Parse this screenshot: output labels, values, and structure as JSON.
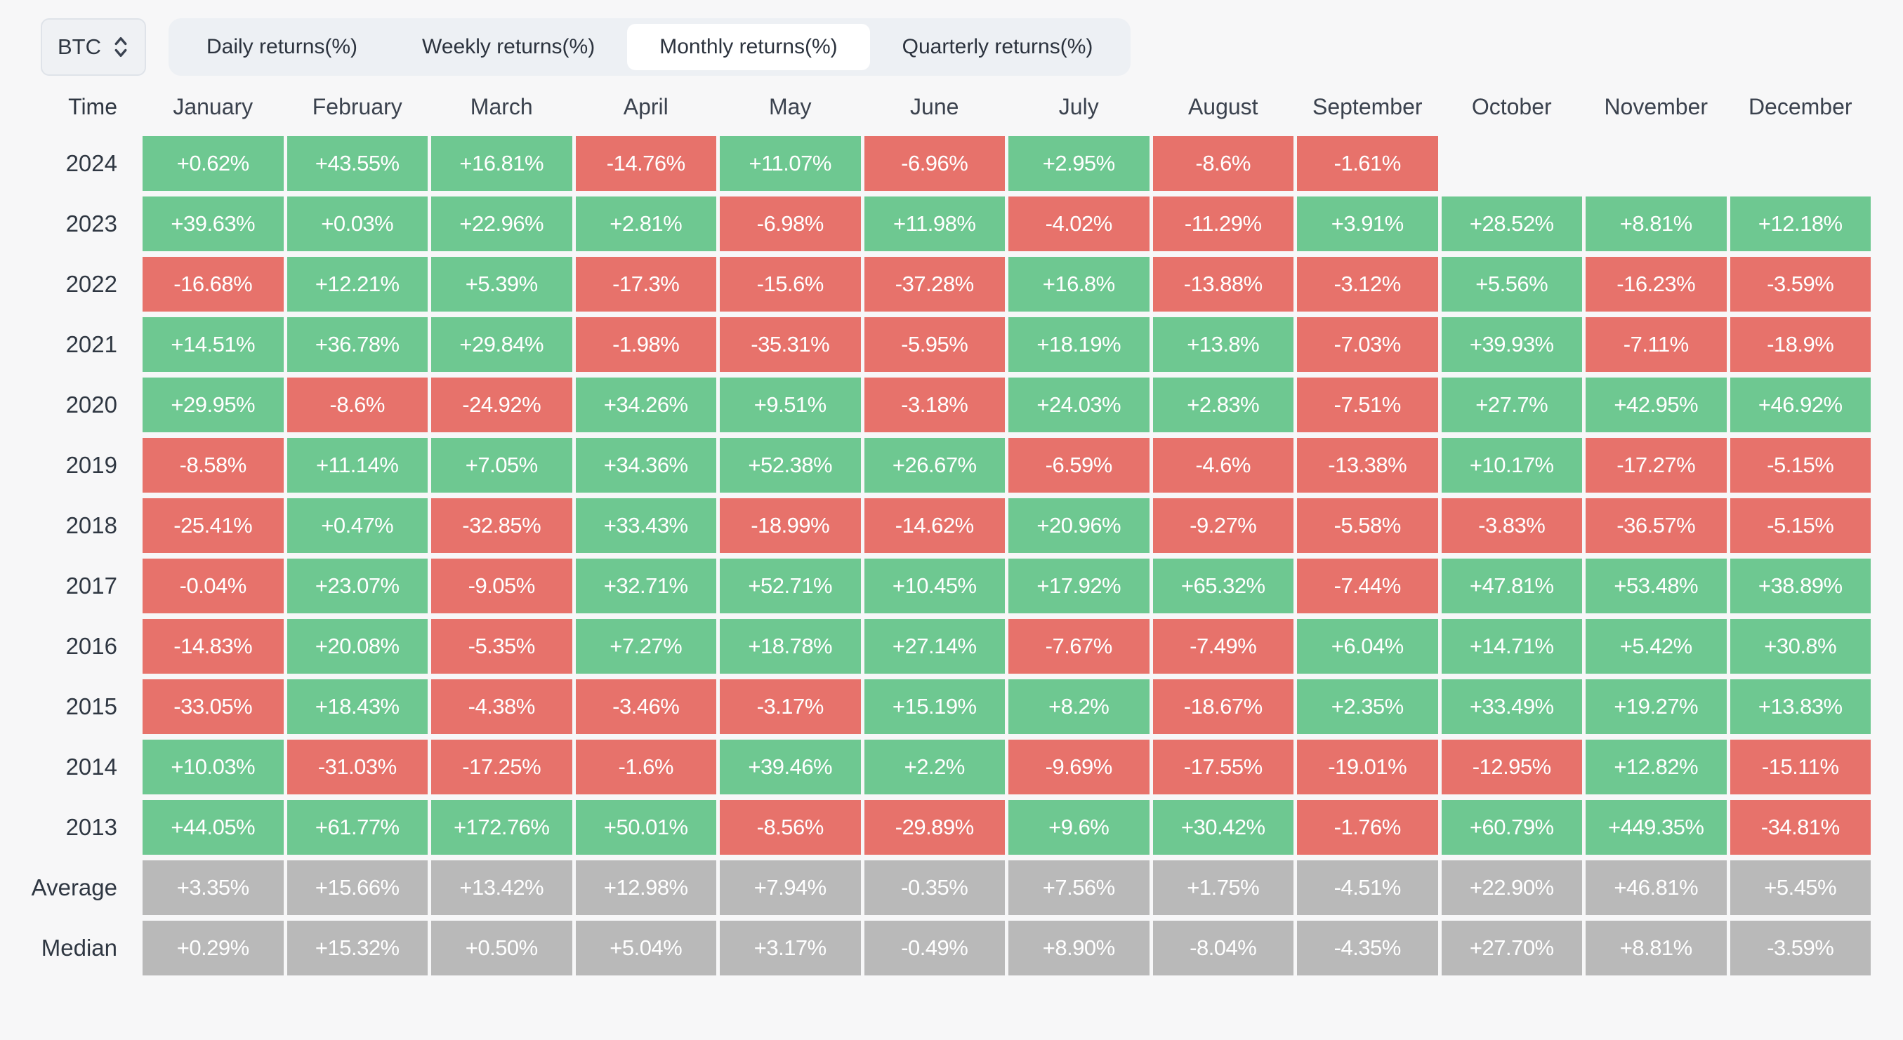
{
  "controls": {
    "asset_selector": {
      "value": "BTC"
    },
    "tabs": [
      {
        "label": "Daily returns(%)",
        "active": false
      },
      {
        "label": "Weekly returns(%)",
        "active": false
      },
      {
        "label": "Monthly returns(%)",
        "active": true
      },
      {
        "label": "Quarterly returns(%)",
        "active": false
      }
    ]
  },
  "colors": {
    "positive": "#6ec891",
    "negative": "#e7726b",
    "summary": "#b9b9b9",
    "background": "#f7f7f8"
  },
  "chart_data": {
    "type": "heatmap",
    "title": "BTC Monthly returns(%)",
    "columns": [
      "Time",
      "January",
      "February",
      "March",
      "April",
      "May",
      "June",
      "July",
      "August",
      "September",
      "October",
      "November",
      "December"
    ],
    "rows": [
      {
        "label": "2024",
        "summary": false,
        "values": [
          "+0.62%",
          "+43.55%",
          "+16.81%",
          "-14.76%",
          "+11.07%",
          "-6.96%",
          "+2.95%",
          "-8.6%",
          "-1.61%",
          null,
          null,
          null
        ]
      },
      {
        "label": "2023",
        "summary": false,
        "values": [
          "+39.63%",
          "+0.03%",
          "+22.96%",
          "+2.81%",
          "-6.98%",
          "+11.98%",
          "-4.02%",
          "-11.29%",
          "+3.91%",
          "+28.52%",
          "+8.81%",
          "+12.18%"
        ]
      },
      {
        "label": "2022",
        "summary": false,
        "values": [
          "-16.68%",
          "+12.21%",
          "+5.39%",
          "-17.3%",
          "-15.6%",
          "-37.28%",
          "+16.8%",
          "-13.88%",
          "-3.12%",
          "+5.56%",
          "-16.23%",
          "-3.59%"
        ]
      },
      {
        "label": "2021",
        "summary": false,
        "values": [
          "+14.51%",
          "+36.78%",
          "+29.84%",
          "-1.98%",
          "-35.31%",
          "-5.95%",
          "+18.19%",
          "+13.8%",
          "-7.03%",
          "+39.93%",
          "-7.11%",
          "-18.9%"
        ]
      },
      {
        "label": "2020",
        "summary": false,
        "values": [
          "+29.95%",
          "-8.6%",
          "-24.92%",
          "+34.26%",
          "+9.51%",
          "-3.18%",
          "+24.03%",
          "+2.83%",
          "-7.51%",
          "+27.7%",
          "+42.95%",
          "+46.92%"
        ]
      },
      {
        "label": "2019",
        "summary": false,
        "values": [
          "-8.58%",
          "+11.14%",
          "+7.05%",
          "+34.36%",
          "+52.38%",
          "+26.67%",
          "-6.59%",
          "-4.6%",
          "-13.38%",
          "+10.17%",
          "-17.27%",
          "-5.15%"
        ]
      },
      {
        "label": "2018",
        "summary": false,
        "values": [
          "-25.41%",
          "+0.47%",
          "-32.85%",
          "+33.43%",
          "-18.99%",
          "-14.62%",
          "+20.96%",
          "-9.27%",
          "-5.58%",
          "-3.83%",
          "-36.57%",
          "-5.15%"
        ]
      },
      {
        "label": "2017",
        "summary": false,
        "values": [
          "-0.04%",
          "+23.07%",
          "-9.05%",
          "+32.71%",
          "+52.71%",
          "+10.45%",
          "+17.92%",
          "+65.32%",
          "-7.44%",
          "+47.81%",
          "+53.48%",
          "+38.89%"
        ]
      },
      {
        "label": "2016",
        "summary": false,
        "values": [
          "-14.83%",
          "+20.08%",
          "-5.35%",
          "+7.27%",
          "+18.78%",
          "+27.14%",
          "-7.67%",
          "-7.49%",
          "+6.04%",
          "+14.71%",
          "+5.42%",
          "+30.8%"
        ]
      },
      {
        "label": "2015",
        "summary": false,
        "values": [
          "-33.05%",
          "+18.43%",
          "-4.38%",
          "-3.46%",
          "-3.17%",
          "+15.19%",
          "+8.2%",
          "-18.67%",
          "+2.35%",
          "+33.49%",
          "+19.27%",
          "+13.83%"
        ]
      },
      {
        "label": "2014",
        "summary": false,
        "values": [
          "+10.03%",
          "-31.03%",
          "-17.25%",
          "-1.6%",
          "+39.46%",
          "+2.2%",
          "-9.69%",
          "-17.55%",
          "-19.01%",
          "-12.95%",
          "+12.82%",
          "-15.11%"
        ]
      },
      {
        "label": "2013",
        "summary": false,
        "values": [
          "+44.05%",
          "+61.77%",
          "+172.76%",
          "+50.01%",
          "-8.56%",
          "-29.89%",
          "+9.6%",
          "+30.42%",
          "-1.76%",
          "+60.79%",
          "+449.35%",
          "-34.81%"
        ]
      },
      {
        "label": "Average",
        "summary": true,
        "values": [
          "+3.35%",
          "+15.66%",
          "+13.42%",
          "+12.98%",
          "+7.94%",
          "-0.35%",
          "+7.56%",
          "+1.75%",
          "-4.51%",
          "+22.90%",
          "+46.81%",
          "+5.45%"
        ]
      },
      {
        "label": "Median",
        "summary": true,
        "values": [
          "+0.29%",
          "+15.32%",
          "+0.50%",
          "+5.04%",
          "+3.17%",
          "-0.49%",
          "+8.90%",
          "-8.04%",
          "-4.35%",
          "+27.70%",
          "+8.81%",
          "-3.59%"
        ]
      }
    ]
  }
}
